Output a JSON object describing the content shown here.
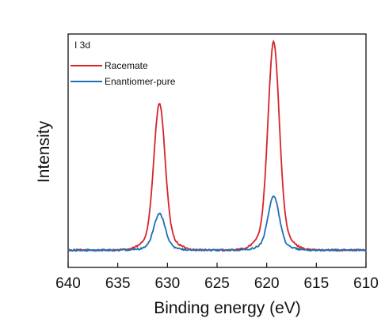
{
  "chart_data": {
    "type": "line",
    "panel_label": "I 3d",
    "xlabel": "Binding energy (eV)",
    "ylabel": "Intensity",
    "xlim": [
      640,
      610
    ],
    "x_reversed": true,
    "xticks": [
      640,
      635,
      630,
      625,
      620,
      615,
      610
    ],
    "ylim": [
      -0.08,
      1.0
    ],
    "y_ticks_shown": false,
    "grid": false,
    "legend_position": "top-left",
    "series": [
      {
        "name": "Racemate",
        "color": "#d6242b",
        "peaks": [
          {
            "center": 630.8,
            "height": 0.678,
            "width": 0.55
          },
          {
            "center": 619.3,
            "height": 0.964,
            "width": 0.55
          }
        ],
        "broad_width": 1.3,
        "broad_fraction": 0.12,
        "noise": 0.004
      },
      {
        "name": "Enantiomer-pure",
        "color": "#1f6fb3",
        "peaks": [
          {
            "center": 630.8,
            "height": 0.168,
            "width": 0.55
          },
          {
            "center": 619.3,
            "height": 0.248,
            "width": 0.55
          }
        ],
        "broad_width": 1.3,
        "broad_fraction": 0.12,
        "noise": 0.004
      }
    ]
  }
}
